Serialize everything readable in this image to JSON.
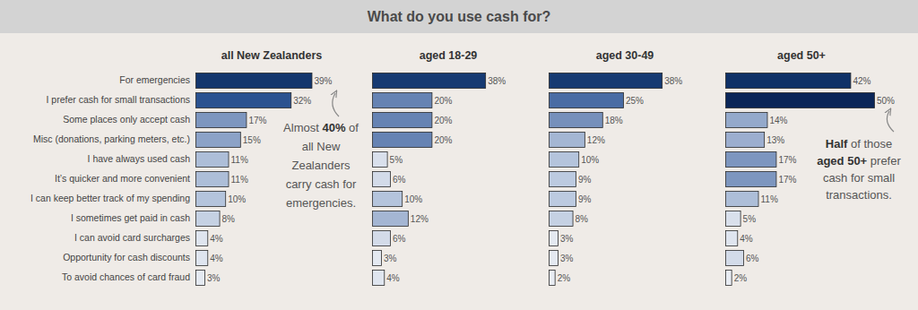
{
  "chart_data": {
    "type": "bar",
    "title": "What do you use cash for?",
    "orientation": "horizontal",
    "data_labels": true,
    "tick_labels": "y",
    "categories": [
      "For emergencies",
      "I prefer cash for small transactions",
      "Some places only accept cash",
      "Misc (donations, parking meters, etc.)",
      "I have always used cash",
      "It’s quicker and more convenient",
      "I can keep better track of my spending",
      "I sometimes get paid in cash",
      "I can avoid card surcharges",
      "Opportunity for cash discounts",
      "To avoid chances of card fraud"
    ],
    "series": [
      {
        "name": "all New Zealanders",
        "values": [
          39,
          32,
          17,
          15,
          11,
          11,
          10,
          8,
          4,
          4,
          3
        ],
        "value_labels": [
          "39%",
          "32%",
          "17%",
          "15%",
          "11%",
          "11%",
          "10%",
          "8%",
          "4%",
          "4%",
          "3%"
        ],
        "colors": [
          "#13366d",
          "#2b5290",
          "#7d96bf",
          "#8ca2c7",
          "#adbed8",
          "#adbed8",
          "#b4c4dc",
          "#c5d1e3",
          "#dfe5ef",
          "#dfe5ef",
          "#e4e9f1"
        ]
      },
      {
        "name": "aged 18-29",
        "values": [
          38,
          20,
          20,
          20,
          5,
          6,
          10,
          12,
          6,
          3,
          4
        ],
        "value_labels": [
          "38%",
          "20%",
          "20%",
          "20%",
          "5%",
          "6%",
          "10%",
          "12%",
          "6%",
          "3%",
          "4%"
        ],
        "colors": [
          "#163a72",
          "#6683b3",
          "#6683b3",
          "#6683b3",
          "#d9e0ec",
          "#d3dbe9",
          "#b4c4dc",
          "#a4b6d3",
          "#d3dbe9",
          "#e4e9f1",
          "#dfe5ef"
        ]
      },
      {
        "name": "aged 30-49",
        "values": [
          38,
          25,
          18,
          12,
          10,
          9,
          9,
          8,
          3,
          3,
          2
        ],
        "value_labels": [
          "38%",
          "25%",
          "18%",
          "12%",
          "10%",
          "9%",
          "9%",
          "8%",
          "3%",
          "3%",
          "2%"
        ],
        "colors": [
          "#163a72",
          "#4a6ca4",
          "#7690bb",
          "#a4b6d3",
          "#b4c4dc",
          "#bccae0",
          "#bccae0",
          "#c5d1e3",
          "#e4e9f1",
          "#e4e9f1",
          "#e8ecf3"
        ]
      },
      {
        "name": "aged 50+",
        "values": [
          42,
          50,
          14,
          13,
          17,
          17,
          11,
          5,
          4,
          6,
          2
        ],
        "value_labels": [
          "42%",
          "50%",
          "14%",
          "13%",
          "17%",
          "17%",
          "11%",
          "5%",
          "4%",
          "6%",
          "2%"
        ],
        "colors": [
          "#0f3167",
          "#0b2658",
          "#94a9cb",
          "#9caecf",
          "#7d96bf",
          "#7d96bf",
          "#adbed8",
          "#d9e0ec",
          "#dfe5ef",
          "#d3dbe9",
          "#e8ecf3"
        ]
      }
    ],
    "annotations": [
      {
        "lines": [
          "Almost 40% of",
          "all New",
          "Zealanders",
          "carry cash for",
          "emergencies."
        ],
        "emphasis": [
          "40%"
        ]
      },
      {
        "lines": [
          "Half of those",
          "aged 50+ prefer",
          "cash for small",
          "transactions."
        ],
        "emphasis": [
          "Half",
          "aged 50+"
        ]
      }
    ]
  }
}
